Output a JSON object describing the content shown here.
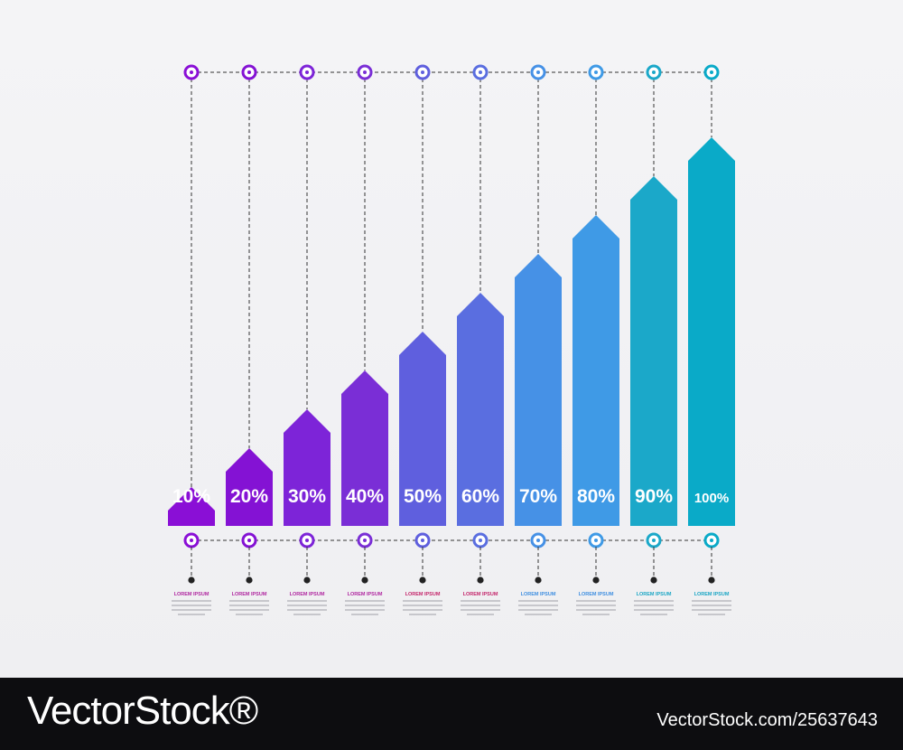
{
  "chart_data": {
    "type": "bar",
    "title": "",
    "xlabel": "",
    "ylabel": "",
    "ylim": [
      0,
      100
    ],
    "categories": [
      "10%",
      "20%",
      "30%",
      "40%",
      "50%",
      "60%",
      "70%",
      "80%",
      "90%",
      "100%"
    ],
    "values": [
      10,
      20,
      30,
      40,
      50,
      60,
      70,
      80,
      90,
      100
    ],
    "data_labels": [
      "10%",
      "20%",
      "30%",
      "40%",
      "50%",
      "60%",
      "70%",
      "80%",
      "90%",
      "100%"
    ],
    "captions": [
      "LOREM IPSUM",
      "LOREM IPSUM",
      "LOREM IPSUM",
      "LOREM IPSUM",
      "LOREM IPSUM",
      "LOREM IPSUM",
      "LOREM IPSUM",
      "LOREM IPSUM",
      "LOREM IPSUM",
      "LOREM IPSUM"
    ],
    "colors": [
      "#8a0fd6",
      "#8412d4",
      "#7d24d8",
      "#7a2ed6",
      "#5f5fde",
      "#5a6ee0",
      "#4691e6",
      "#3f9ae6",
      "#1ba8c9",
      "#0aaac8"
    ],
    "caption_colors": [
      "#b0279f",
      "#b0279f",
      "#b0279f",
      "#b0279f",
      "#c4266a",
      "#c4266a",
      "#3f8fe0",
      "#3f8fe0",
      "#1aa6c4",
      "#1aa6c4"
    ],
    "grid": false,
    "legend": "none"
  },
  "footer": {
    "brand": "VectorStock®",
    "image_id": "VectorStock.com/25637643"
  }
}
